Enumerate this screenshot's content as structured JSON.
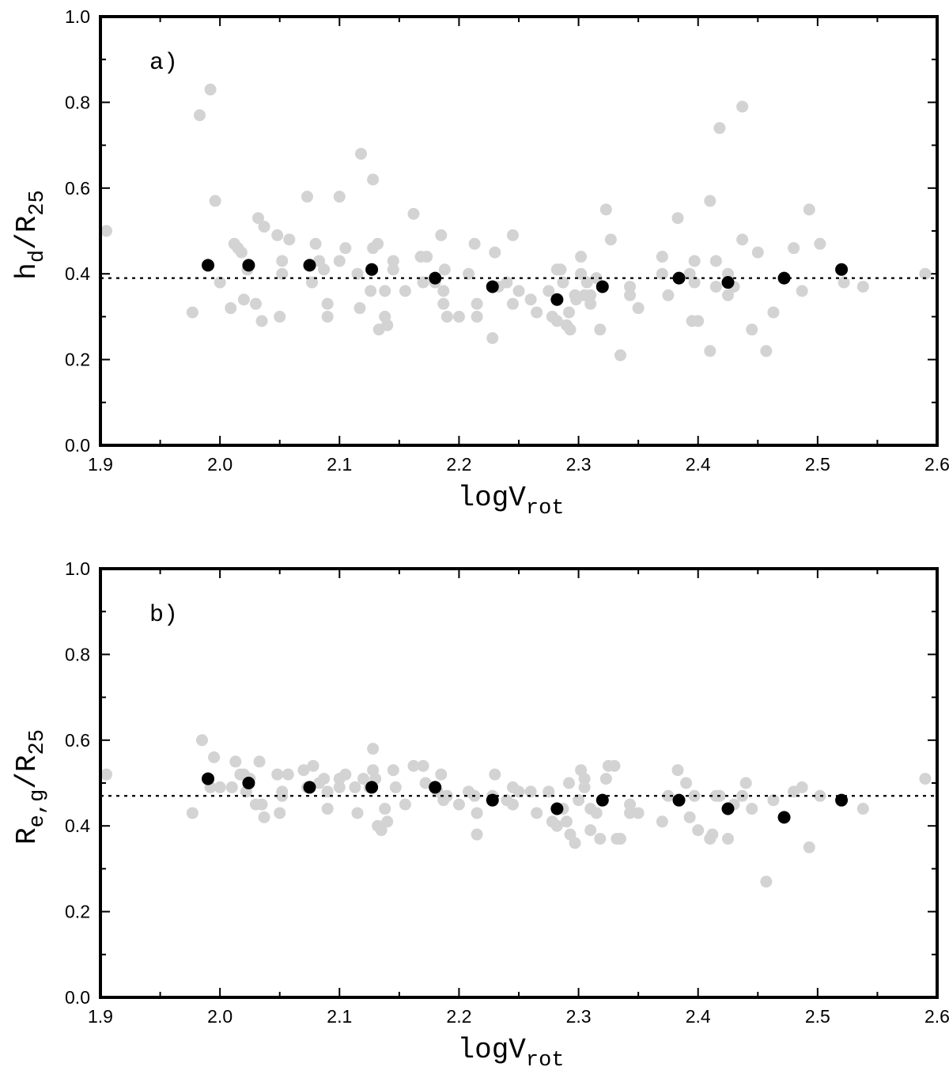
{
  "chart_data": [
    {
      "type": "scatter",
      "panel_label": "a)",
      "xlabel": {
        "main": "logV",
        "sub": "rot"
      },
      "ylabel": {
        "main": "h",
        "sub": "d",
        "divider": "/R",
        "divider_sub": "25"
      },
      "xlim": [
        1.9,
        2.6
      ],
      "ylim": [
        0.0,
        1.0
      ],
      "xticks": [
        "1.9",
        "2.0",
        "2.1",
        "2.2",
        "2.3",
        "2.4",
        "2.5",
        "2.6"
      ],
      "yticks": [
        "0.0",
        "0.2",
        "0.4",
        "0.6",
        "0.8",
        "1.0"
      ],
      "reference_line": 0.39,
      "colors": {
        "individual": "#d3d3d3",
        "binned": "#000000",
        "reference": "#000000"
      },
      "series": [
        {
          "name": "individual",
          "points": [
            [
              1.905,
              0.5
            ],
            [
              1.977,
              0.31
            ],
            [
              1.983,
              0.77
            ],
            [
              1.992,
              0.83
            ],
            [
              1.996,
              0.57
            ],
            [
              2.0,
              0.38
            ],
            [
              2.009,
              0.32
            ],
            [
              2.012,
              0.47
            ],
            [
              2.015,
              0.46
            ],
            [
              2.018,
              0.45
            ],
            [
              2.02,
              0.34
            ],
            [
              2.023,
              0.41
            ],
            [
              2.03,
              0.33
            ],
            [
              2.032,
              0.53
            ],
            [
              2.035,
              0.29
            ],
            [
              2.037,
              0.51
            ],
            [
              2.048,
              0.49
            ],
            [
              2.05,
              0.3
            ],
            [
              2.052,
              0.43
            ],
            [
              2.052,
              0.4
            ],
            [
              2.058,
              0.48
            ],
            [
              2.073,
              0.58
            ],
            [
              2.077,
              0.38
            ],
            [
              2.08,
              0.47
            ],
            [
              2.083,
              0.43
            ],
            [
              2.087,
              0.41
            ],
            [
              2.09,
              0.33
            ],
            [
              2.09,
              0.3
            ],
            [
              2.1,
              0.58
            ],
            [
              2.1,
              0.43
            ],
            [
              2.105,
              0.46
            ],
            [
              2.115,
              0.4
            ],
            [
              2.117,
              0.32
            ],
            [
              2.118,
              0.68
            ],
            [
              2.126,
              0.36
            ],
            [
              2.128,
              0.62
            ],
            [
              2.128,
              0.46
            ],
            [
              2.132,
              0.47
            ],
            [
              2.133,
              0.27
            ],
            [
              2.138,
              0.36
            ],
            [
              2.138,
              0.3
            ],
            [
              2.14,
              0.28
            ],
            [
              2.145,
              0.43
            ],
            [
              2.145,
              0.41
            ],
            [
              2.155,
              0.36
            ],
            [
              2.162,
              0.54
            ],
            [
              2.168,
              0.44
            ],
            [
              2.17,
              0.38
            ],
            [
              2.173,
              0.44
            ],
            [
              2.18,
              0.38
            ],
            [
              2.185,
              0.49
            ],
            [
              2.187,
              0.36
            ],
            [
              2.187,
              0.33
            ],
            [
              2.188,
              0.41
            ],
            [
              2.19,
              0.3
            ],
            [
              2.2,
              0.3
            ],
            [
              2.208,
              0.4
            ],
            [
              2.213,
              0.47
            ],
            [
              2.215,
              0.33
            ],
            [
              2.215,
              0.3
            ],
            [
              2.228,
              0.25
            ],
            [
              2.23,
              0.45
            ],
            [
              2.233,
              0.37
            ],
            [
              2.24,
              0.38
            ],
            [
              2.245,
              0.49
            ],
            [
              2.245,
              0.33
            ],
            [
              2.25,
              0.36
            ],
            [
              2.26,
              0.34
            ],
            [
              2.265,
              0.31
            ],
            [
              2.275,
              0.36
            ],
            [
              2.278,
              0.3
            ],
            [
              2.282,
              0.41
            ],
            [
              2.282,
              0.29
            ],
            [
              2.285,
              0.41
            ],
            [
              2.287,
              0.38
            ],
            [
              2.29,
              0.28
            ],
            [
              2.292,
              0.31
            ],
            [
              2.293,
              0.27
            ],
            [
              2.297,
              0.35
            ],
            [
              2.298,
              0.34
            ],
            [
              2.302,
              0.44
            ],
            [
              2.302,
              0.4
            ],
            [
              2.305,
              0.35
            ],
            [
              2.307,
              0.38
            ],
            [
              2.31,
              0.33
            ],
            [
              2.31,
              0.35
            ],
            [
              2.315,
              0.39
            ],
            [
              2.318,
              0.27
            ],
            [
              2.323,
              0.55
            ],
            [
              2.327,
              0.48
            ],
            [
              2.335,
              0.21
            ],
            [
              2.343,
              0.37
            ],
            [
              2.343,
              0.35
            ],
            [
              2.35,
              0.32
            ],
            [
              2.37,
              0.44
            ],
            [
              2.37,
              0.4
            ],
            [
              2.375,
              0.35
            ],
            [
              2.383,
              0.53
            ],
            [
              2.393,
              0.4
            ],
            [
              2.395,
              0.29
            ],
            [
              2.397,
              0.43
            ],
            [
              2.397,
              0.38
            ],
            [
              2.4,
              0.29
            ],
            [
              2.41,
              0.57
            ],
            [
              2.41,
              0.22
            ],
            [
              2.415,
              0.43
            ],
            [
              2.415,
              0.37
            ],
            [
              2.418,
              0.74
            ],
            [
              2.425,
              0.4
            ],
            [
              2.425,
              0.35
            ],
            [
              2.43,
              0.37
            ],
            [
              2.437,
              0.79
            ],
            [
              2.437,
              0.48
            ],
            [
              2.445,
              0.27
            ],
            [
              2.45,
              0.45
            ],
            [
              2.457,
              0.22
            ],
            [
              2.463,
              0.31
            ],
            [
              2.48,
              0.46
            ],
            [
              2.487,
              0.36
            ],
            [
              2.493,
              0.55
            ],
            [
              2.502,
              0.47
            ],
            [
              2.522,
              0.38
            ],
            [
              2.538,
              0.37
            ],
            [
              2.59,
              0.4
            ]
          ]
        },
        {
          "name": "binned",
          "points": [
            [
              1.99,
              0.42
            ],
            [
              2.024,
              0.42
            ],
            [
              2.075,
              0.42
            ],
            [
              2.127,
              0.41
            ],
            [
              2.18,
              0.39
            ],
            [
              2.228,
              0.37
            ],
            [
              2.282,
              0.34
            ],
            [
              2.32,
              0.37
            ],
            [
              2.384,
              0.39
            ],
            [
              2.425,
              0.38
            ],
            [
              2.472,
              0.39
            ],
            [
              2.52,
              0.41
            ]
          ]
        }
      ]
    },
    {
      "type": "scatter",
      "panel_label": "b)",
      "xlabel": {
        "main": "logV",
        "sub": "rot"
      },
      "ylabel": {
        "main": "R",
        "sub": "e,g",
        "divider": "/R",
        "divider_sub": "25"
      },
      "xlim": [
        1.9,
        2.6
      ],
      "ylim": [
        0.0,
        1.0
      ],
      "xticks": [
        "1.9",
        "2.0",
        "2.1",
        "2.2",
        "2.3",
        "2.4",
        "2.5",
        "2.6"
      ],
      "yticks": [
        "0.0",
        "0.2",
        "0.4",
        "0.6",
        "0.8",
        "1.0"
      ],
      "reference_line": 0.47,
      "colors": {
        "individual": "#d3d3d3",
        "binned": "#000000",
        "reference": "#000000"
      },
      "series": [
        {
          "name": "individual",
          "points": [
            [
              1.905,
              0.52
            ],
            [
              1.977,
              0.43
            ],
            [
              1.985,
              0.6
            ],
            [
              1.992,
              0.49
            ],
            [
              1.995,
              0.56
            ],
            [
              2.0,
              0.49
            ],
            [
              2.01,
              0.49
            ],
            [
              2.013,
              0.55
            ],
            [
              2.017,
              0.52
            ],
            [
              2.02,
              0.52
            ],
            [
              2.022,
              0.48
            ],
            [
              2.025,
              0.51
            ],
            [
              2.03,
              0.45
            ],
            [
              2.033,
              0.55
            ],
            [
              2.035,
              0.45
            ],
            [
              2.037,
              0.42
            ],
            [
              2.048,
              0.52
            ],
            [
              2.05,
              0.43
            ],
            [
              2.052,
              0.48
            ],
            [
              2.052,
              0.47
            ],
            [
              2.057,
              0.52
            ],
            [
              2.07,
              0.53
            ],
            [
              2.073,
              0.49
            ],
            [
              2.078,
              0.54
            ],
            [
              2.083,
              0.5
            ],
            [
              2.087,
              0.51
            ],
            [
              2.09,
              0.44
            ],
            [
              2.09,
              0.48
            ],
            [
              2.1,
              0.51
            ],
            [
              2.1,
              0.49
            ],
            [
              2.105,
              0.52
            ],
            [
              2.113,
              0.49
            ],
            [
              2.115,
              0.43
            ],
            [
              2.12,
              0.51
            ],
            [
              2.125,
              0.49
            ],
            [
              2.128,
              0.58
            ],
            [
              2.128,
              0.53
            ],
            [
              2.13,
              0.51
            ],
            [
              2.132,
              0.4
            ],
            [
              2.135,
              0.39
            ],
            [
              2.138,
              0.44
            ],
            [
              2.14,
              0.41
            ],
            [
              2.145,
              0.53
            ],
            [
              2.147,
              0.49
            ],
            [
              2.155,
              0.45
            ],
            [
              2.162,
              0.54
            ],
            [
              2.17,
              0.54
            ],
            [
              2.172,
              0.5
            ],
            [
              2.182,
              0.48
            ],
            [
              2.185,
              0.52
            ],
            [
              2.187,
              0.46
            ],
            [
              2.19,
              0.47
            ],
            [
              2.2,
              0.45
            ],
            [
              2.208,
              0.48
            ],
            [
              2.213,
              0.47
            ],
            [
              2.215,
              0.43
            ],
            [
              2.215,
              0.38
            ],
            [
              2.228,
              0.47
            ],
            [
              2.23,
              0.52
            ],
            [
              2.24,
              0.46
            ],
            [
              2.245,
              0.49
            ],
            [
              2.245,
              0.45
            ],
            [
              2.25,
              0.48
            ],
            [
              2.26,
              0.48
            ],
            [
              2.265,
              0.43
            ],
            [
              2.275,
              0.48
            ],
            [
              2.278,
              0.41
            ],
            [
              2.282,
              0.4
            ],
            [
              2.287,
              0.44
            ],
            [
              2.29,
              0.41
            ],
            [
              2.292,
              0.5
            ],
            [
              2.293,
              0.38
            ],
            [
              2.297,
              0.36
            ],
            [
              2.3,
              0.46
            ],
            [
              2.302,
              0.53
            ],
            [
              2.305,
              0.49
            ],
            [
              2.305,
              0.51
            ],
            [
              2.31,
              0.44
            ],
            [
              2.31,
              0.39
            ],
            [
              2.315,
              0.43
            ],
            [
              2.318,
              0.37
            ],
            [
              2.323,
              0.51
            ],
            [
              2.325,
              0.54
            ],
            [
              2.33,
              0.54
            ],
            [
              2.332,
              0.37
            ],
            [
              2.335,
              0.37
            ],
            [
              2.343,
              0.45
            ],
            [
              2.343,
              0.43
            ],
            [
              2.35,
              0.43
            ],
            [
              2.37,
              0.41
            ],
            [
              2.375,
              0.47
            ],
            [
              2.383,
              0.53
            ],
            [
              2.39,
              0.5
            ],
            [
              2.393,
              0.42
            ],
            [
              2.397,
              0.47
            ],
            [
              2.4,
              0.39
            ],
            [
              2.41,
              0.37
            ],
            [
              2.412,
              0.38
            ],
            [
              2.415,
              0.47
            ],
            [
              2.418,
              0.47
            ],
            [
              2.425,
              0.37
            ],
            [
              2.43,
              0.45
            ],
            [
              2.437,
              0.47
            ],
            [
              2.44,
              0.5
            ],
            [
              2.445,
              0.44
            ],
            [
              2.457,
              0.27
            ],
            [
              2.463,
              0.46
            ],
            [
              2.48,
              0.48
            ],
            [
              2.487,
              0.49
            ],
            [
              2.493,
              0.35
            ],
            [
              2.502,
              0.47
            ],
            [
              2.538,
              0.44
            ],
            [
              2.59,
              0.51
            ]
          ]
        },
        {
          "name": "binned",
          "points": [
            [
              1.99,
              0.51
            ],
            [
              2.024,
              0.5
            ],
            [
              2.075,
              0.49
            ],
            [
              2.127,
              0.49
            ],
            [
              2.18,
              0.49
            ],
            [
              2.228,
              0.46
            ],
            [
              2.282,
              0.44
            ],
            [
              2.32,
              0.46
            ],
            [
              2.384,
              0.46
            ],
            [
              2.425,
              0.44
            ],
            [
              2.472,
              0.42
            ],
            [
              2.52,
              0.46
            ]
          ]
        }
      ]
    }
  ]
}
